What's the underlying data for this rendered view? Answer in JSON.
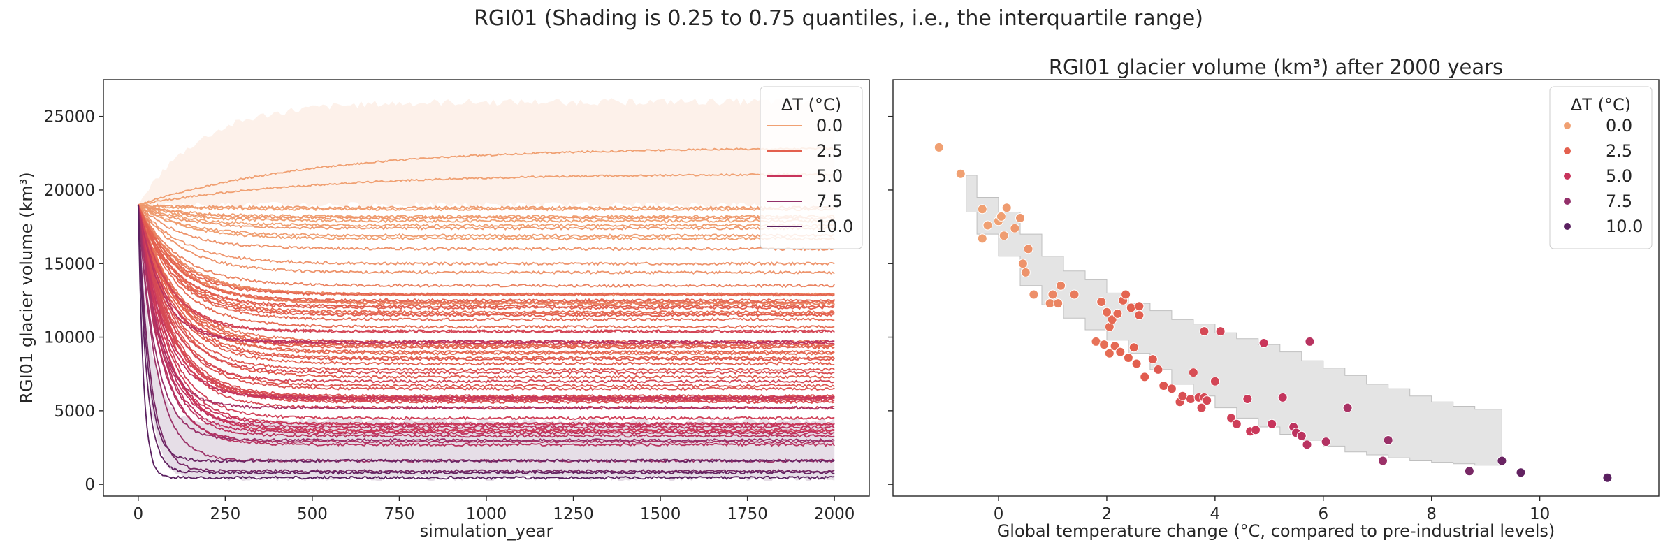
{
  "figure": {
    "suptitle": "RGI01 (Shading is 0.25 to 0.75 quantiles, i.e., the interquartile range)"
  },
  "legend_colors": [
    "#f0a072",
    "#e3604e",
    "#c8345c",
    "#93306a",
    "#5a2060"
  ],
  "chart_data": [
    {
      "type": "line",
      "title": "",
      "xlabel": "simulation_year",
      "ylabel": "RGI01 glacier volume (km³)",
      "xlim": [
        -100,
        2100
      ],
      "ylim": [
        -800,
        27500
      ],
      "xticks": [
        0,
        250,
        500,
        750,
        1000,
        1250,
        1500,
        1750,
        2000
      ],
      "yticks": [
        0,
        5000,
        10000,
        15000,
        20000,
        25000
      ],
      "legend": {
        "title": "ΔT (°C)",
        "position": "upper right",
        "entries": [
          "0.0",
          "2.5",
          "5.0",
          "7.5",
          "10.0"
        ]
      },
      "initial_volume": 19000,
      "series": [
        {
          "delta_t": -1.1,
          "final": 22900
        },
        {
          "delta_t": -0.7,
          "final": 21100
        },
        {
          "delta_t": -0.3,
          "final": 18700
        },
        {
          "delta_t": -0.2,
          "final": 17600
        },
        {
          "delta_t": -0.3,
          "final": 16700
        },
        {
          "delta_t": 0.0,
          "final": 17900
        },
        {
          "delta_t": 0.05,
          "final": 18200
        },
        {
          "delta_t": 0.1,
          "final": 16900
        },
        {
          "delta_t": 0.15,
          "final": 18800
        },
        {
          "delta_t": 0.3,
          "final": 17400
        },
        {
          "delta_t": 0.4,
          "final": 18100
        },
        {
          "delta_t": 0.45,
          "final": 15000
        },
        {
          "delta_t": 0.55,
          "final": 16000
        },
        {
          "delta_t": 0.65,
          "final": 12900
        },
        {
          "delta_t": 0.5,
          "final": 14400
        },
        {
          "delta_t": 0.95,
          "final": 12300
        },
        {
          "delta_t": 1.0,
          "final": 12900
        },
        {
          "delta_t": 1.1,
          "final": 12300
        },
        {
          "delta_t": 1.15,
          "final": 13500
        },
        {
          "delta_t": 1.4,
          "final": 12900
        },
        {
          "delta_t": 1.8,
          "final": 9700
        },
        {
          "delta_t": 1.9,
          "final": 12400
        },
        {
          "delta_t": 1.95,
          "final": 9500
        },
        {
          "delta_t": 2.0,
          "final": 11700
        },
        {
          "delta_t": 2.05,
          "final": 8900
        },
        {
          "delta_t": 2.05,
          "final": 10700
        },
        {
          "delta_t": 2.1,
          "final": 11200
        },
        {
          "delta_t": 2.15,
          "final": 9400
        },
        {
          "delta_t": 2.2,
          "final": 11600
        },
        {
          "delta_t": 2.25,
          "final": 9000
        },
        {
          "delta_t": 2.3,
          "final": 12500
        },
        {
          "delta_t": 2.35,
          "final": 12900
        },
        {
          "delta_t": 2.4,
          "final": 8600
        },
        {
          "delta_t": 2.45,
          "final": 12000
        },
        {
          "delta_t": 2.5,
          "final": 9300
        },
        {
          "delta_t": 2.55,
          "final": 8200
        },
        {
          "delta_t": 2.6,
          "final": 11500
        },
        {
          "delta_t": 2.6,
          "final": 12100
        },
        {
          "delta_t": 2.7,
          "final": 7300
        },
        {
          "delta_t": 2.85,
          "final": 8500
        },
        {
          "delta_t": 2.95,
          "final": 7800
        },
        {
          "delta_t": 3.05,
          "final": 6700
        },
        {
          "delta_t": 3.2,
          "final": 6500
        },
        {
          "delta_t": 3.35,
          "final": 5600
        },
        {
          "delta_t": 3.4,
          "final": 6000
        },
        {
          "delta_t": 3.55,
          "final": 5800
        },
        {
          "delta_t": 3.6,
          "final": 7600
        },
        {
          "delta_t": 3.7,
          "final": 5900
        },
        {
          "delta_t": 3.75,
          "final": 5200
        },
        {
          "delta_t": 3.8,
          "final": 10400
        },
        {
          "delta_t": 3.8,
          "final": 5900
        },
        {
          "delta_t": 3.85,
          "final": 5700
        },
        {
          "delta_t": 4.0,
          "final": 7000
        },
        {
          "delta_t": 4.1,
          "final": 10400
        },
        {
          "delta_t": 4.3,
          "final": 4500
        },
        {
          "delta_t": 4.4,
          "final": 4100
        },
        {
          "delta_t": 4.6,
          "final": 5800
        },
        {
          "delta_t": 4.65,
          "final": 3600
        },
        {
          "delta_t": 4.75,
          "final": 3700
        },
        {
          "delta_t": 4.9,
          "final": 9600
        },
        {
          "delta_t": 5.05,
          "final": 4100
        },
        {
          "delta_t": 5.25,
          "final": 5900
        },
        {
          "delta_t": 5.45,
          "final": 3900
        },
        {
          "delta_t": 5.5,
          "final": 3500
        },
        {
          "delta_t": 5.6,
          "final": 3300
        },
        {
          "delta_t": 5.7,
          "final": 2700
        },
        {
          "delta_t": 5.75,
          "final": 9700
        },
        {
          "delta_t": 6.05,
          "final": 2900
        },
        {
          "delta_t": 6.45,
          "final": 5200
        },
        {
          "delta_t": 7.1,
          "final": 1600
        },
        {
          "delta_t": 7.2,
          "final": 3000
        },
        {
          "delta_t": 8.7,
          "final": 900
        },
        {
          "delta_t": 9.3,
          "final": 1600
        },
        {
          "delta_t": 9.65,
          "final": 800
        },
        {
          "delta_t": 11.25,
          "final": 450
        }
      ],
      "iqr_bands": [
        {
          "name": "0.0",
          "low_final": 19000,
          "high_final": 26000
        },
        {
          "name": "10.0",
          "low_final": 400,
          "high_final": 4300
        }
      ]
    },
    {
      "type": "scatter",
      "title": "RGI01 glacier volume (km³) after 2000 years",
      "xlabel": "Global temperature change (°C, compared to pre-industrial levels)",
      "ylabel": "",
      "xlim": [
        -1.95,
        12.2
      ],
      "ylim": [
        -800,
        27500
      ],
      "xticks": [
        0,
        2,
        4,
        6,
        8,
        10
      ],
      "legend": {
        "title": "ΔT (°C)",
        "position": "upper right",
        "entries": [
          "0.0",
          "2.5",
          "5.0",
          "7.5",
          "10.0"
        ]
      },
      "points": [
        {
          "x": -1.1,
          "y": 22900
        },
        {
          "x": -0.7,
          "y": 21100
        },
        {
          "x": -0.3,
          "y": 18700
        },
        {
          "x": -0.2,
          "y": 17600
        },
        {
          "x": -0.3,
          "y": 16700
        },
        {
          "x": 0.0,
          "y": 17900
        },
        {
          "x": 0.05,
          "y": 18200
        },
        {
          "x": 0.1,
          "y": 16900
        },
        {
          "x": 0.15,
          "y": 18800
        },
        {
          "x": 0.3,
          "y": 17400
        },
        {
          "x": 0.4,
          "y": 18100
        },
        {
          "x": 0.45,
          "y": 15000
        },
        {
          "x": 0.55,
          "y": 16000
        },
        {
          "x": 0.65,
          "y": 12900
        },
        {
          "x": 0.5,
          "y": 14400
        },
        {
          "x": 0.95,
          "y": 12300
        },
        {
          "x": 1.0,
          "y": 12900
        },
        {
          "x": 1.1,
          "y": 12300
        },
        {
          "x": 1.15,
          "y": 13500
        },
        {
          "x": 1.4,
          "y": 12900
        },
        {
          "x": 1.8,
          "y": 9700
        },
        {
          "x": 1.9,
          "y": 12400
        },
        {
          "x": 1.95,
          "y": 9500
        },
        {
          "x": 2.0,
          "y": 11700
        },
        {
          "x": 2.05,
          "y": 8900
        },
        {
          "x": 2.05,
          "y": 10700
        },
        {
          "x": 2.1,
          "y": 11200
        },
        {
          "x": 2.15,
          "y": 9400
        },
        {
          "x": 2.2,
          "y": 11600
        },
        {
          "x": 2.25,
          "y": 9000
        },
        {
          "x": 2.3,
          "y": 12500
        },
        {
          "x": 2.35,
          "y": 12900
        },
        {
          "x": 2.4,
          "y": 8600
        },
        {
          "x": 2.45,
          "y": 12000
        },
        {
          "x": 2.5,
          "y": 9300
        },
        {
          "x": 2.55,
          "y": 8200
        },
        {
          "x": 2.6,
          "y": 11500
        },
        {
          "x": 2.6,
          "y": 12100
        },
        {
          "x": 2.7,
          "y": 7300
        },
        {
          "x": 2.85,
          "y": 8500
        },
        {
          "x": 2.95,
          "y": 7800
        },
        {
          "x": 3.05,
          "y": 6700
        },
        {
          "x": 3.2,
          "y": 6500
        },
        {
          "x": 3.35,
          "y": 5600
        },
        {
          "x": 3.4,
          "y": 6000
        },
        {
          "x": 3.55,
          "y": 5800
        },
        {
          "x": 3.6,
          "y": 7600
        },
        {
          "x": 3.7,
          "y": 5900
        },
        {
          "x": 3.75,
          "y": 5200
        },
        {
          "x": 3.8,
          "y": 10400
        },
        {
          "x": 3.8,
          "y": 5900
        },
        {
          "x": 3.85,
          "y": 5700
        },
        {
          "x": 4.0,
          "y": 7000
        },
        {
          "x": 4.1,
          "y": 10400
        },
        {
          "x": 4.3,
          "y": 4500
        },
        {
          "x": 4.4,
          "y": 4100
        },
        {
          "x": 4.6,
          "y": 5800
        },
        {
          "x": 4.65,
          "y": 3600
        },
        {
          "x": 4.75,
          "y": 3700
        },
        {
          "x": 4.9,
          "y": 9600
        },
        {
          "x": 5.05,
          "y": 4100
        },
        {
          "x": 5.25,
          "y": 5900
        },
        {
          "x": 5.45,
          "y": 3900
        },
        {
          "x": 5.5,
          "y": 3500
        },
        {
          "x": 5.6,
          "y": 3300
        },
        {
          "x": 5.7,
          "y": 2700
        },
        {
          "x": 5.75,
          "y": 9700
        },
        {
          "x": 6.05,
          "y": 2900
        },
        {
          "x": 6.45,
          "y": 5200
        },
        {
          "x": 7.1,
          "y": 1600
        },
        {
          "x": 7.2,
          "y": 3000
        },
        {
          "x": 8.7,
          "y": 900
        },
        {
          "x": 9.3,
          "y": 1600
        },
        {
          "x": 9.65,
          "y": 800
        },
        {
          "x": 11.25,
          "y": 450
        }
      ],
      "iqr_band": [
        {
          "x0": -0.6,
          "x1": -0.4,
          "low": 18500,
          "high": 21000
        },
        {
          "x0": -0.4,
          "x1": 0.0,
          "low": 17000,
          "high": 19500
        },
        {
          "x0": 0.0,
          "x1": 0.4,
          "low": 15500,
          "high": 18500
        },
        {
          "x0": 0.4,
          "x1": 0.8,
          "low": 13500,
          "high": 17000
        },
        {
          "x0": 0.8,
          "x1": 1.2,
          "low": 12200,
          "high": 15500
        },
        {
          "x0": 1.2,
          "x1": 1.6,
          "low": 11300,
          "high": 14500
        },
        {
          "x0": 1.6,
          "x1": 2.0,
          "low": 10500,
          "high": 13900
        },
        {
          "x0": 2.0,
          "x1": 2.4,
          "low": 9800,
          "high": 13000
        },
        {
          "x0": 2.4,
          "x1": 2.8,
          "low": 8900,
          "high": 12300
        },
        {
          "x0": 2.8,
          "x1": 3.2,
          "low": 7800,
          "high": 11800
        },
        {
          "x0": 3.2,
          "x1": 3.6,
          "low": 6800,
          "high": 11200
        },
        {
          "x0": 3.6,
          "x1": 4.0,
          "low": 6000,
          "high": 10900
        },
        {
          "x0": 4.0,
          "x1": 4.4,
          "low": 5200,
          "high": 10300
        },
        {
          "x0": 4.4,
          "x1": 4.8,
          "low": 4500,
          "high": 9900
        },
        {
          "x0": 4.8,
          "x1": 5.2,
          "low": 3900,
          "high": 9500
        },
        {
          "x0": 5.2,
          "x1": 5.6,
          "low": 3400,
          "high": 9000
        },
        {
          "x0": 5.6,
          "x1": 6.0,
          "low": 3000,
          "high": 8400
        },
        {
          "x0": 6.0,
          "x1": 6.4,
          "low": 2600,
          "high": 7900
        },
        {
          "x0": 6.4,
          "x1": 6.8,
          "low": 2200,
          "high": 7400
        },
        {
          "x0": 6.8,
          "x1": 7.2,
          "low": 2000,
          "high": 6800
        },
        {
          "x0": 7.2,
          "x1": 7.6,
          "low": 1800,
          "high": 6500
        },
        {
          "x0": 7.6,
          "x1": 8.0,
          "low": 1600,
          "high": 6000
        },
        {
          "x0": 8.0,
          "x1": 8.4,
          "low": 1500,
          "high": 5600
        },
        {
          "x0": 8.4,
          "x1": 8.8,
          "low": 1400,
          "high": 5300
        },
        {
          "x0": 8.8,
          "x1": 9.3,
          "low": 1300,
          "high": 5100
        }
      ]
    }
  ]
}
